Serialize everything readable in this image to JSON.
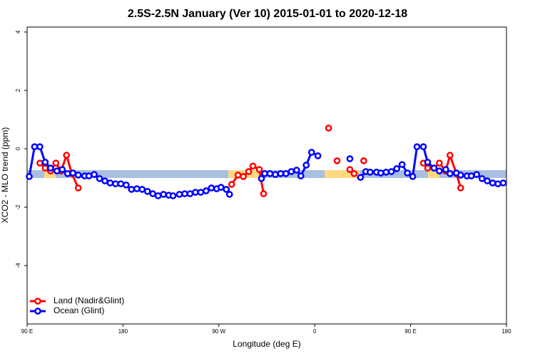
{
  "chart_data": {
    "type": "line",
    "title": "2.5S-2.5N January (Ver 10)   2015-01-01 to 2020-12-18",
    "x_label": "Longitude (deg E)",
    "y_label": "XCO2 - MLO trend (ppm)",
    "xlim": [
      -270,
      180
    ],
    "ylim": [
      -6,
      4.17
    ],
    "xticks": [
      {
        "value": -270,
        "label": "90 E"
      },
      {
        "value": -180,
        "label": "180"
      },
      {
        "value": -90,
        "label": "90 W"
      },
      0,
      {
        "value": 90,
        "label": "90 E"
      },
      180
    ],
    "yticks": [
      -4,
      -2,
      0,
      2,
      4
    ],
    "legend": "bottom-left",
    "series": [
      {
        "name": "Land (Nadir&Glint)",
        "color": "#ff0000",
        "x": [
          -258,
          -253,
          -248,
          -243,
          -238,
          -233,
          -228,
          -222,
          null,
          -78,
          -72,
          -67,
          -62,
          -58,
          -52,
          -48,
          null,
          13,
          null,
          21,
          null,
          33,
          37,
          null,
          46,
          null,
          102,
          106,
          112,
          117,
          123,
          127,
          133,
          137
        ],
        "values": [
          -0.49,
          -0.66,
          -0.76,
          -0.49,
          -0.76,
          -0.22,
          -0.85,
          -1.34,
          null,
          -1.22,
          -0.9,
          -0.95,
          -0.78,
          -0.59,
          -0.71,
          -1.54,
          null,
          0.71,
          null,
          -0.41,
          null,
          -0.71,
          -0.85,
          null,
          -0.41,
          null,
          -0.49,
          -0.66,
          -0.66,
          -0.49,
          -0.76,
          -0.22,
          -0.85,
          -1.34
        ]
      },
      {
        "name": "Ocean (Glint)",
        "color": "#0000ff",
        "x": [
          -268,
          -263,
          -258,
          -253,
          -248,
          -242,
          -237,
          -232,
          -227,
          -222,
          -216,
          -212,
          -207,
          -202,
          -197,
          -192,
          -187,
          -182,
          -177,
          -172,
          -167,
          -162,
          -157,
          -152,
          -147,
          -142,
          -137,
          -133,
          -127,
          -122,
          -117,
          -112,
          -107,
          -102,
          -97,
          -92,
          -88,
          -83,
          -80,
          null,
          -50,
          -47,
          -42,
          -37,
          -32,
          -27,
          -22,
          -17,
          -13,
          -8,
          -3,
          3,
          null,
          33,
          null,
          43,
          48,
          52,
          58,
          62,
          67,
          72,
          77,
          82,
          87,
          92,
          96,
          102,
          106,
          112,
          117,
          123,
          127,
          133,
          137,
          143,
          147,
          152,
          157,
          162,
          167,
          172,
          177
        ],
        "values": [
          -0.95,
          0.07,
          0.07,
          -0.46,
          -0.66,
          -0.76,
          -0.71,
          -0.85,
          -0.83,
          -0.9,
          -0.93,
          -0.93,
          -0.88,
          -1.02,
          -1.1,
          -1.17,
          -1.2,
          -1.2,
          -1.24,
          -1.39,
          -1.37,
          -1.39,
          -1.46,
          -1.54,
          -1.61,
          -1.56,
          -1.59,
          -1.61,
          -1.56,
          -1.54,
          -1.54,
          -1.49,
          -1.49,
          -1.44,
          -1.34,
          -1.37,
          -1.32,
          -1.39,
          -1.56,
          null,
          -1.02,
          -0.85,
          -0.85,
          -0.88,
          -0.85,
          -0.85,
          -0.78,
          -0.73,
          -0.93,
          -0.56,
          -0.12,
          -0.24,
          null,
          -0.34,
          null,
          -0.98,
          -0.78,
          -0.8,
          -0.8,
          -0.83,
          -0.8,
          -0.78,
          -0.68,
          -0.54,
          -0.83,
          -0.95,
          0.07,
          0.07,
          -0.46,
          -0.66,
          -0.76,
          -0.71,
          -0.85,
          -0.83,
          -0.9,
          -0.93,
          -0.93,
          -0.88,
          -1.02,
          -1.1,
          -1.17,
          -1.2,
          -1.17
        ]
      }
    ]
  }
}
